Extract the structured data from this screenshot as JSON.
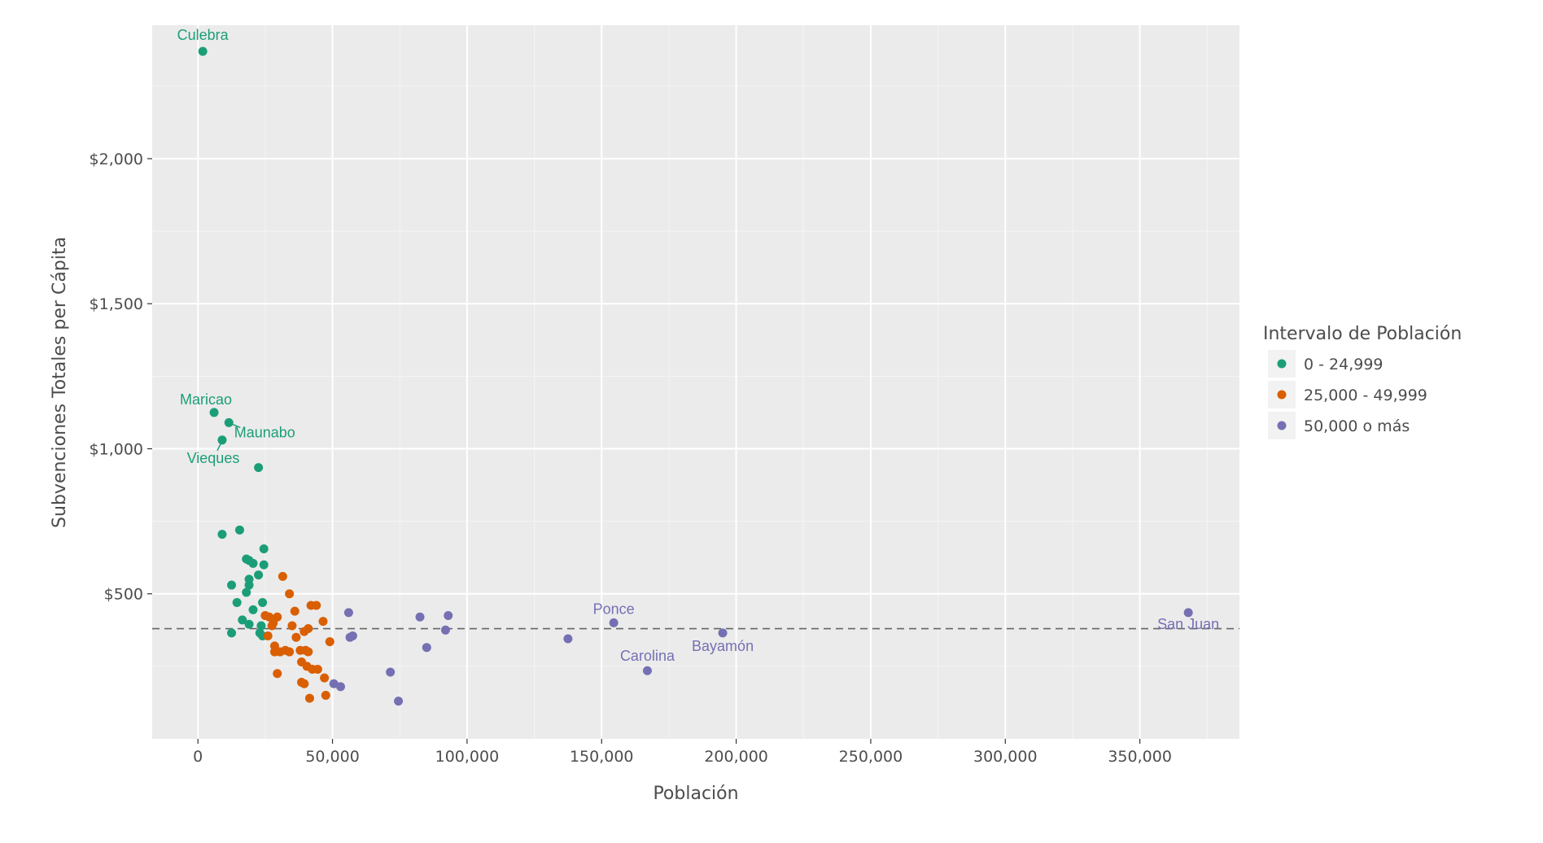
{
  "chart_data": {
    "type": "scatter",
    "xlabel": "Población",
    "ylabel": "Subvenciones Totales per Cápita",
    "xlim": [
      -17000,
      387000
    ],
    "ylim": [
      0,
      2460
    ],
    "x_ticks": [
      0,
      50000,
      100000,
      150000,
      200000,
      250000,
      300000,
      350000
    ],
    "x_tick_labels": [
      "0",
      "50,000",
      "100,000",
      "150,000",
      "200,000",
      "250,000",
      "300,000",
      "350,000"
    ],
    "y_ticks": [
      500,
      1000,
      1500,
      2000
    ],
    "y_tick_labels": [
      "$500",
      "$1,000",
      "$1,500",
      "$2,000"
    ],
    "grid": true,
    "reference_line": {
      "y": 380,
      "style": "dashed",
      "color": "#666666"
    },
    "legend": {
      "title": "Intervalo de Población",
      "position": "right",
      "entries": [
        {
          "label": "0 - 24,999",
          "color": "#1b9e77"
        },
        {
          "label": "25,000 - 49,999",
          "color": "#d95f02"
        },
        {
          "label": "50,000 o más",
          "color": "#7570b3"
        }
      ]
    },
    "series": [
      {
        "name": "0 - 24,999",
        "color": "#1b9e77",
        "points": [
          [
            1800,
            2370
          ],
          [
            6000,
            1125
          ],
          [
            11500,
            1090
          ],
          [
            9000,
            1030
          ],
          [
            22500,
            935
          ],
          [
            9000,
            705
          ],
          [
            15500,
            720
          ],
          [
            24500,
            655
          ],
          [
            18000,
            620
          ],
          [
            19000,
            615
          ],
          [
            20500,
            605
          ],
          [
            24500,
            600
          ],
          [
            22500,
            565
          ],
          [
            19000,
            550
          ],
          [
            19000,
            530
          ],
          [
            12500,
            530
          ],
          [
            18000,
            505
          ],
          [
            14500,
            470
          ],
          [
            24000,
            470
          ],
          [
            20500,
            445
          ],
          [
            16500,
            410
          ],
          [
            19000,
            395
          ],
          [
            23500,
            390
          ],
          [
            12500,
            365
          ],
          [
            23000,
            365
          ],
          [
            24000,
            355
          ]
        ]
      },
      {
        "name": "25,000 - 49,999",
        "color": "#d95f02",
        "points": [
          [
            31500,
            560
          ],
          [
            34000,
            500
          ],
          [
            42000,
            460
          ],
          [
            44000,
            460
          ],
          [
            36000,
            440
          ],
          [
            25000,
            425
          ],
          [
            26500,
            420
          ],
          [
            29500,
            420
          ],
          [
            46500,
            405
          ],
          [
            28000,
            400
          ],
          [
            27500,
            390
          ],
          [
            35000,
            390
          ],
          [
            41000,
            380
          ],
          [
            39500,
            370
          ],
          [
            26000,
            355
          ],
          [
            36500,
            350
          ],
          [
            49000,
            335
          ],
          [
            28500,
            320
          ],
          [
            32500,
            305
          ],
          [
            38000,
            305
          ],
          [
            40000,
            305
          ],
          [
            28500,
            300
          ],
          [
            30500,
            300
          ],
          [
            34000,
            300
          ],
          [
            41000,
            300
          ],
          [
            38500,
            265
          ],
          [
            40500,
            250
          ],
          [
            42500,
            240
          ],
          [
            44500,
            240
          ],
          [
            29500,
            225
          ],
          [
            47000,
            210
          ],
          [
            38500,
            195
          ],
          [
            39500,
            190
          ],
          [
            47500,
            150
          ],
          [
            41500,
            140
          ]
        ]
      },
      {
        "name": "50,000 o más",
        "color": "#7570b3",
        "points": [
          [
            368000,
            435
          ],
          [
            56000,
            435
          ],
          [
            93000,
            425
          ],
          [
            82500,
            420
          ],
          [
            154500,
            400
          ],
          [
            92000,
            375
          ],
          [
            195000,
            365
          ],
          [
            57500,
            355
          ],
          [
            56500,
            350
          ],
          [
            137500,
            345
          ],
          [
            85000,
            315
          ],
          [
            167000,
            235
          ],
          [
            71500,
            230
          ],
          [
            50500,
            190
          ],
          [
            53000,
            180
          ],
          [
            74500,
            130
          ]
        ]
      }
    ],
    "labels": [
      {
        "text": "Culebra",
        "x": 1800,
        "y": 2370,
        "color": "#1b9e77"
      },
      {
        "text": "Maricao",
        "x": 6000,
        "y": 1125,
        "color": "#1b9e77"
      },
      {
        "text": "Maunabo",
        "x": 11500,
        "y": 1090,
        "color": "#1b9e77"
      },
      {
        "text": "Vieques",
        "x": 9000,
        "y": 1030,
        "color": "#1b9e77"
      },
      {
        "text": "Ponce",
        "x": 154500,
        "y": 400,
        "color": "#7570b3"
      },
      {
        "text": "San Juan",
        "x": 368000,
        "y": 435,
        "color": "#7570b3"
      },
      {
        "text": "Bayamón",
        "x": 195000,
        "y": 365,
        "color": "#7570b3"
      },
      {
        "text": "Carolina",
        "x": 167000,
        "y": 235,
        "color": "#7570b3"
      }
    ]
  }
}
